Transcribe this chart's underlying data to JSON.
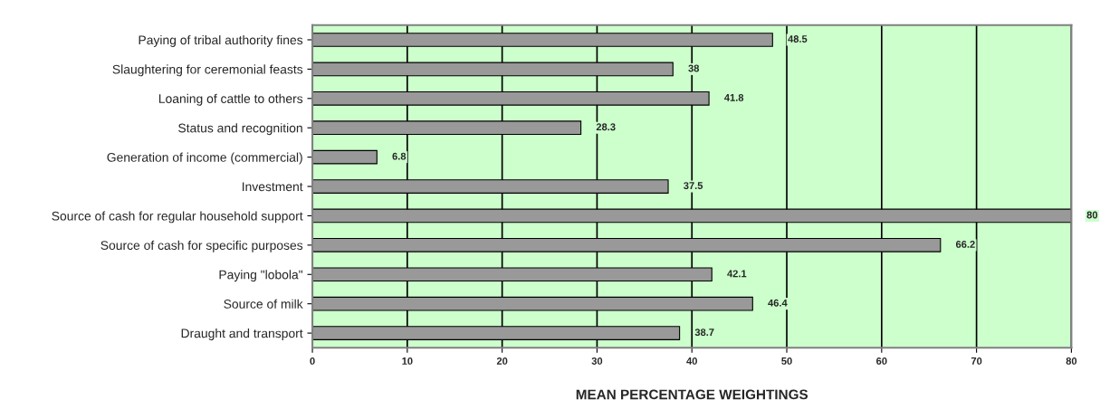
{
  "chart_data": {
    "type": "bar",
    "orientation": "horizontal",
    "categories": [
      "Paying of tribal authority fines",
      "Slaughtering for ceremonial feasts",
      "Loaning of cattle to others",
      "Status and recognition",
      "Generation of income (commercial)",
      "Investment",
      "Source of cash for regular household support",
      "Source of cash for specific purposes",
      "Paying \"lobola\"",
      "Source of milk",
      "Draught and transport"
    ],
    "values": [
      48.5,
      38,
      41.8,
      28.3,
      6.8,
      37.5,
      80,
      66.2,
      42.1,
      46.4,
      38.7
    ],
    "color": "#999999",
    "xlabel": "MEAN PERCENTAGE WEIGHTINGS",
    "xlim": [
      0,
      80
    ],
    "xticks": [
      0,
      10,
      20,
      30,
      40,
      50,
      60,
      70,
      80
    ],
    "grid": "x",
    "data_labels": true,
    "legend": false
  }
}
